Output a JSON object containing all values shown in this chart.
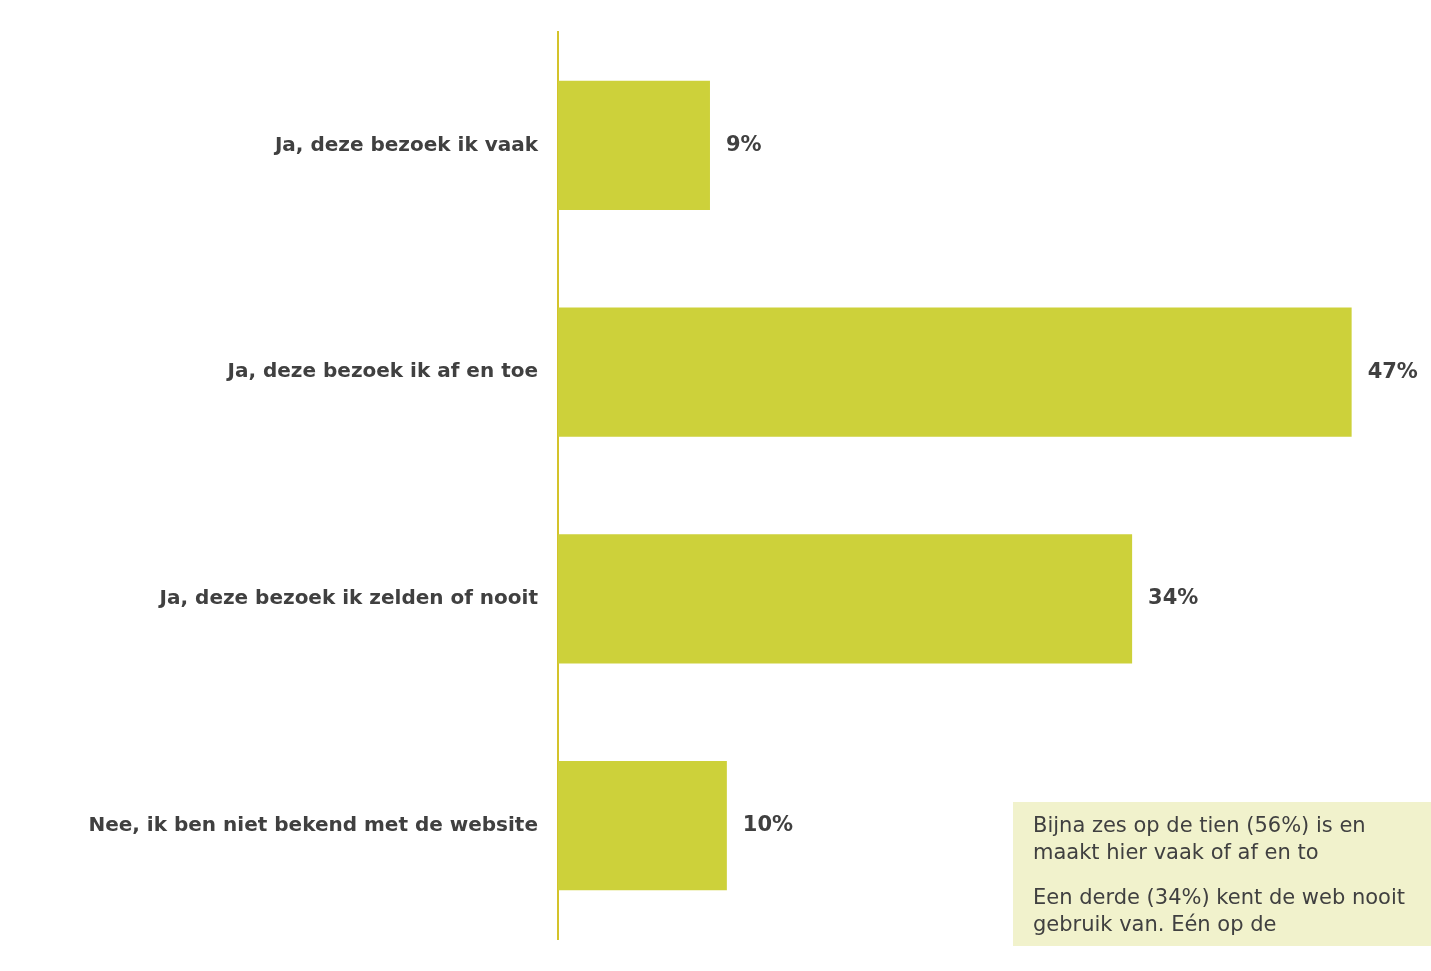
{
  "chart_data": {
    "type": "bar",
    "orientation": "horizontal",
    "categories": [
      "Ja, deze bezoek ik vaak",
      "Ja, deze bezoek ik af en toe",
      "Ja, deze bezoek ik zelden of nooit",
      "Nee, ik ben niet bekend met de website"
    ],
    "values": [
      9,
      47,
      34,
      10
    ],
    "value_labels": [
      "9%",
      "47%",
      "34%",
      "10%"
    ],
    "color": "#cdd13a",
    "legend": false,
    "annotations": [
      "Bijna zes op de tien (56%) is en maakt hier vaak of af en to",
      "Een derde (34%) kent de web nooit gebruik van. Eén op de"
    ]
  }
}
